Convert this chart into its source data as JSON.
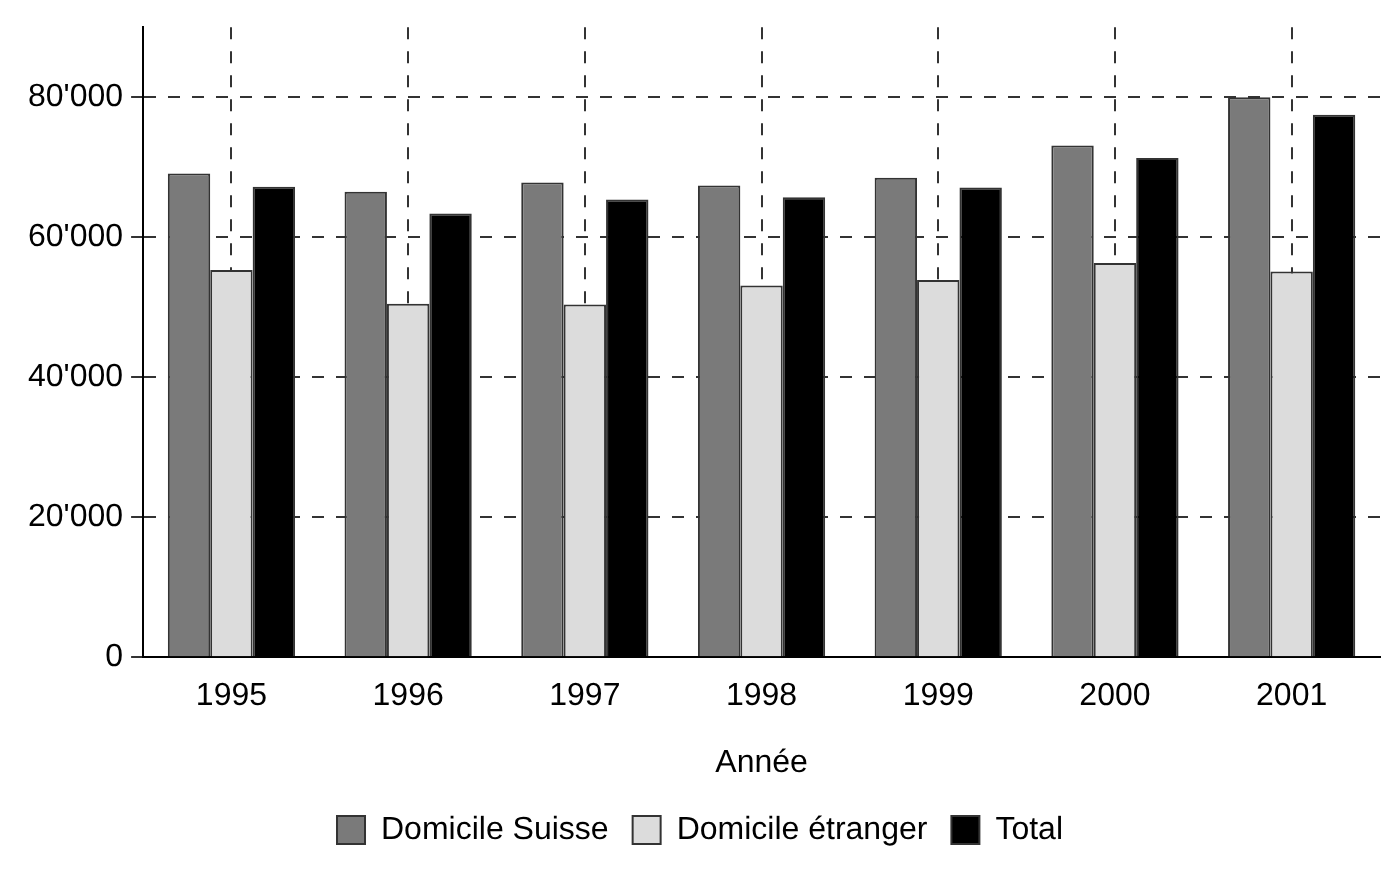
{
  "chart_data": {
    "type": "bar",
    "xlabel": "Année",
    "categories": [
      "1995",
      "1996",
      "1997",
      "1998",
      "1999",
      "2000",
      "2001"
    ],
    "series": [
      {
        "name": "Domicile Suisse",
        "color": "#7a7a7a",
        "values": [
          69100,
          66500,
          67800,
          67400,
          68500,
          73100,
          80000
        ]
      },
      {
        "name": "Domicile étranger",
        "color": "#dcdcdc",
        "values": [
          55300,
          50500,
          50400,
          53100,
          53900,
          56300,
          55100
        ]
      },
      {
        "name": "Total",
        "color": "#000000",
        "values": [
          67200,
          63400,
          65400,
          65700,
          67100,
          71300,
          77500
        ]
      }
    ],
    "ylim": [
      0,
      90000
    ],
    "yticks": [
      {
        "value": 0,
        "label": "0"
      },
      {
        "value": 20000,
        "label": "20'000"
      },
      {
        "value": 40000,
        "label": "40'000"
      },
      {
        "value": 60000,
        "label": "60'000"
      },
      {
        "value": 80000,
        "label": "80'000"
      }
    ],
    "grid": true,
    "legend": "bottom",
    "line_style": "dashed"
  }
}
